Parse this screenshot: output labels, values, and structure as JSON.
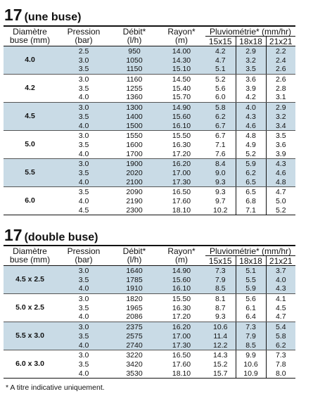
{
  "footnote": "* A titre indicative uniquement.",
  "headers": {
    "nozzle": [
      "Diamètre",
      "buse (mm)"
    ],
    "pressure": [
      "Pression",
      "(bar)"
    ],
    "flow": [
      "Débit*",
      "(l/h)"
    ],
    "radius": [
      "Rayon*",
      "(m)"
    ],
    "pluvio": "Pluviométrie* (mm/hr)",
    "pluvio_cols": [
      "15x15",
      "18x18",
      "21x21"
    ]
  },
  "single": {
    "title_num": "17",
    "title_sub": "(une buse)",
    "rows": [
      {
        "nozzle": "4.0",
        "pressure": [
          "2.5",
          "3.0",
          "3.5"
        ],
        "flow": [
          "950",
          "1050",
          "1150"
        ],
        "radius": [
          "14.00",
          "14.30",
          "15.10"
        ],
        "p15": [
          "4.2",
          "4.7",
          "5.1"
        ],
        "p18": [
          "2.9",
          "3.2",
          "3.5"
        ],
        "p21": [
          "2.2",
          "2.4",
          "2.6"
        ]
      },
      {
        "nozzle": "4.2",
        "pressure": [
          "3.0",
          "3.5",
          "4.0"
        ],
        "flow": [
          "1160",
          "1255",
          "1360"
        ],
        "radius": [
          "14.50",
          "15.40",
          "15.70"
        ],
        "p15": [
          "5.2",
          "5.6",
          "6.0"
        ],
        "p18": [
          "3.6",
          "3.9",
          "4.2"
        ],
        "p21": [
          "2.6",
          "2.8",
          "3.1"
        ]
      },
      {
        "nozzle": "4.5",
        "pressure": [
          "3.0",
          "3.5",
          "4.0"
        ],
        "flow": [
          "1300",
          "1400",
          "1500"
        ],
        "radius": [
          "14.90",
          "15.60",
          "16.10"
        ],
        "p15": [
          "5.8",
          "6.2",
          "6.7"
        ],
        "p18": [
          "4.0",
          "4.3",
          "4.6"
        ],
        "p21": [
          "2.9",
          "3.2",
          "3.4"
        ]
      },
      {
        "nozzle": "5.0",
        "pressure": [
          "3.0",
          "3.5",
          "4.0"
        ],
        "flow": [
          "1550",
          "1600",
          "1700"
        ],
        "radius": [
          "15.50",
          "16.30",
          "17.20"
        ],
        "p15": [
          "6.7",
          "7.1",
          "7.6"
        ],
        "p18": [
          "4.8",
          "4.9",
          "5.2"
        ],
        "p21": [
          "3.5",
          "3.6",
          "3.9"
        ]
      },
      {
        "nozzle": "5.5",
        "pressure": [
          "3.0",
          "3.5",
          "4.0"
        ],
        "flow": [
          "1900",
          "2020",
          "2100"
        ],
        "radius": [
          "16.20",
          "17.00",
          "17.30"
        ],
        "p15": [
          "8.4",
          "9.0",
          "9.3"
        ],
        "p18": [
          "5.9",
          "6.2",
          "6.5"
        ],
        "p21": [
          "4.3",
          "4.6",
          "4.8"
        ]
      },
      {
        "nozzle": "6.0",
        "pressure": [
          "3.5",
          "4.0",
          "4.5"
        ],
        "flow": [
          "2090",
          "2190",
          "2300"
        ],
        "radius": [
          "16.50",
          "17.60",
          "18.10"
        ],
        "p15": [
          "9.3",
          "9.7",
          "10.2"
        ],
        "p18": [
          "6.5",
          "6.8",
          "7.1"
        ],
        "p21": [
          "4.7",
          "5.0",
          "5.2"
        ]
      }
    ]
  },
  "double": {
    "title_num": "17",
    "title_sub": "(double buse)",
    "rows": [
      {
        "nozzle": "4.5 x 2.5",
        "pressure": [
          "3.0",
          "3.5",
          "4.0"
        ],
        "flow": [
          "1640",
          "1785",
          "1910"
        ],
        "radius": [
          "14.90",
          "15.60",
          "16.10"
        ],
        "p15": [
          "7.3",
          "7.9",
          "8.5"
        ],
        "p18": [
          "5.1",
          "5.5",
          "5.9"
        ],
        "p21": [
          "3.7",
          "4.0",
          "4.3"
        ]
      },
      {
        "nozzle": "5.0 x 2.5",
        "pressure": [
          "3.0",
          "3.5",
          "4.0"
        ],
        "flow": [
          "1820",
          "1965",
          "2086"
        ],
        "radius": [
          "15.50",
          "16.30",
          "17.20"
        ],
        "p15": [
          "8.1",
          "8.7",
          "9.3"
        ],
        "p18": [
          "5.6",
          "6.1",
          "6.4"
        ],
        "p21": [
          "4.1",
          "4.5",
          "4.7"
        ]
      },
      {
        "nozzle": "5.5 x 3.0",
        "pressure": [
          "3.0",
          "3.5",
          "4.0"
        ],
        "flow": [
          "2375",
          "2575",
          "2740"
        ],
        "radius": [
          "16.20",
          "17.00",
          "17.30"
        ],
        "p15": [
          "10.6",
          "11.4",
          "12.2"
        ],
        "p18": [
          "7.3",
          "7.9",
          "8.5"
        ],
        "p21": [
          "5.4",
          "5.8",
          "6.2"
        ]
      },
      {
        "nozzle": "6.0 x 3.0",
        "pressure": [
          "3.0",
          "3.5",
          "4.0"
        ],
        "flow": [
          "3220",
          "3420",
          "3530"
        ],
        "radius": [
          "16.50",
          "17.60",
          "18.10"
        ],
        "p15": [
          "14.3",
          "15.2",
          "15.7"
        ],
        "p18": [
          "9.9",
          "10.6",
          "10.9"
        ],
        "p21": [
          "7.3",
          "7.8",
          "8.0"
        ]
      }
    ]
  }
}
